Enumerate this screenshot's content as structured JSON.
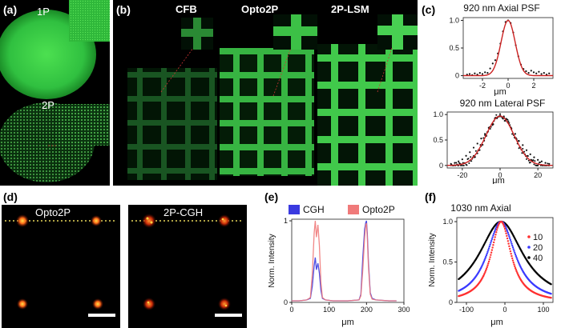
{
  "panels": {
    "a": {
      "label": "(a)",
      "img_labels": [
        "1P",
        "2P"
      ]
    },
    "b": {
      "label": "(b)",
      "img_labels": [
        "CFB",
        "Opto2P",
        "2P-LSM"
      ]
    },
    "c": {
      "label": "(c)"
    },
    "d": {
      "label": "(d)",
      "img_labels": [
        "Opto2P",
        "2P-CGH"
      ]
    },
    "e": {
      "label": "(e)"
    },
    "f": {
      "label": "(f)"
    }
  },
  "colors": {
    "fluor_green": "#3fd94a",
    "spot_red": "#ff5a1a",
    "fit_red": "#cc2222",
    "cgh_blue": "#3a3ae0",
    "opto_pink": "#f07a7a",
    "guide_yellow": "#e8d85a"
  },
  "chart_data": [
    {
      "id": "c-axial",
      "type": "scatter",
      "title": "920 nm Axial PSF",
      "xlabel": "μm",
      "ylabel": "",
      "xlim": [
        -3.5,
        3.5
      ],
      "ylim": [
        -0.05,
        1.05
      ],
      "xticks": [
        -2,
        0,
        2
      ],
      "yticks": [
        0,
        0.5,
        1
      ],
      "ytick_labels": [
        "0",
        "0.5",
        "1.0"
      ],
      "fit": {
        "type": "gaussian",
        "center": 0,
        "sigma": 0.55,
        "amplitude": 1
      },
      "series": [
        {
          "x": [
            -3.2,
            -3.0,
            -2.8,
            -2.6,
            -2.4,
            -2.2,
            -2.0,
            -1.8,
            -1.6,
            -1.4,
            -1.2,
            -1.0,
            -0.8,
            -0.6,
            -0.4,
            -0.2,
            0,
            0.2,
            0.4,
            0.6,
            0.8,
            1.0,
            1.2,
            1.4,
            1.6,
            1.8,
            2.0,
            2.2,
            2.4,
            2.6,
            2.8,
            3.0,
            3.2
          ],
          "y": [
            0.02,
            0.03,
            0.01,
            0.04,
            0.02,
            0.05,
            0.03,
            0.06,
            0.05,
            0.13,
            0.22,
            0.28,
            0.4,
            0.58,
            0.8,
            0.97,
            1.0,
            0.95,
            0.78,
            0.55,
            0.35,
            0.2,
            0.12,
            0.08,
            0.05,
            0.09,
            0.06,
            0.04,
            0.07,
            0.03,
            0.05,
            0.02,
            0.04
          ]
        }
      ]
    },
    {
      "id": "c-lateral",
      "type": "scatter",
      "title": "920 nm Lateral PSF",
      "xlabel": "μm",
      "ylabel": "",
      "xlim": [
        -28,
        28
      ],
      "ylim": [
        -0.05,
        1.05
      ],
      "xticks": [
        -20,
        0,
        20
      ],
      "yticks": [
        0,
        0.5,
        1
      ],
      "ytick_labels": [
        "0",
        "0.5",
        "1.0"
      ],
      "fit": {
        "type": "gaussian",
        "center": 0,
        "sigma": 7.5,
        "amplitude": 0.97
      },
      "series": [
        {
          "x": [
            -26,
            -24,
            -22,
            -20,
            -18,
            -16,
            -14,
            -12,
            -10,
            -8,
            -6,
            -4,
            -2,
            0,
            2,
            4,
            6,
            8,
            10,
            12,
            14,
            16,
            18,
            20,
            22,
            24,
            26
          ],
          "y": [
            0.03,
            0.05,
            0.08,
            0.12,
            0.19,
            0.26,
            0.35,
            0.43,
            0.53,
            0.62,
            0.74,
            0.82,
            0.93,
            0.98,
            0.95,
            0.85,
            0.73,
            0.62,
            0.48,
            0.4,
            0.3,
            0.22,
            0.16,
            0.11,
            0.08,
            0.05,
            0.03
          ]
        }
      ]
    },
    {
      "id": "e",
      "type": "line",
      "xlabel": "μm",
      "ylabel": "Norm. Intensity",
      "xlim": [
        0,
        300
      ],
      "ylim": [
        0,
        1.02
      ],
      "xticks": [
        0,
        100,
        200,
        300
      ],
      "yticks": [
        0,
        1
      ],
      "legend": [
        "CGH",
        "Opto2P"
      ],
      "series": [
        {
          "name": "CGH",
          "x": [
            0,
            20,
            40,
            50,
            55,
            60,
            63,
            66,
            70,
            74,
            78,
            82,
            90,
            110,
            150,
            180,
            185,
            190,
            195,
            198,
            200,
            202,
            205,
            210,
            215,
            225,
            260,
            280
          ],
          "y": [
            0.02,
            0.02,
            0.03,
            0.05,
            0.2,
            0.45,
            0.55,
            0.4,
            0.48,
            0.36,
            0.15,
            0.05,
            0.03,
            0.02,
            0.02,
            0.03,
            0.1,
            0.55,
            0.9,
            0.98,
            1.0,
            0.85,
            0.5,
            0.12,
            0.05,
            0.03,
            0.02,
            0.02
          ]
        },
        {
          "name": "Opto2P",
          "x": [
            0,
            20,
            40,
            50,
            55,
            60,
            63,
            66,
            70,
            74,
            78,
            82,
            90,
            110,
            150,
            180,
            185,
            190,
            195,
            198,
            200,
            202,
            205,
            210,
            215,
            225,
            260,
            280
          ],
          "y": [
            0.02,
            0.02,
            0.03,
            0.06,
            0.35,
            0.85,
            1.0,
            0.8,
            0.95,
            0.7,
            0.25,
            0.06,
            0.03,
            0.02,
            0.02,
            0.03,
            0.08,
            0.4,
            0.8,
            0.95,
            0.97,
            0.8,
            0.45,
            0.1,
            0.04,
            0.03,
            0.02,
            0.02
          ]
        }
      ]
    },
    {
      "id": "f",
      "type": "scatter",
      "title": "1030 nm Axial",
      "xlabel": "μm",
      "ylabel": "Norm. Intensity",
      "xlim": [
        -125,
        125
      ],
      "ylim": [
        0,
        1.05
      ],
      "xticks": [
        -100,
        0,
        100
      ],
      "yticks": [
        0,
        0.5,
        1
      ],
      "ytick_labels": [
        "0",
        "0.5",
        "1.0"
      ],
      "legend": [
        "10",
        "20",
        "40"
      ],
      "series": [
        {
          "name": "10",
          "color": "#ff3030",
          "center": -10,
          "width": 32
        },
        {
          "name": "20",
          "color": "#3a3aff",
          "center": -10,
          "width": 45
        },
        {
          "name": "40",
          "color": "#000000",
          "center": -10,
          "width": 70
        }
      ]
    }
  ]
}
